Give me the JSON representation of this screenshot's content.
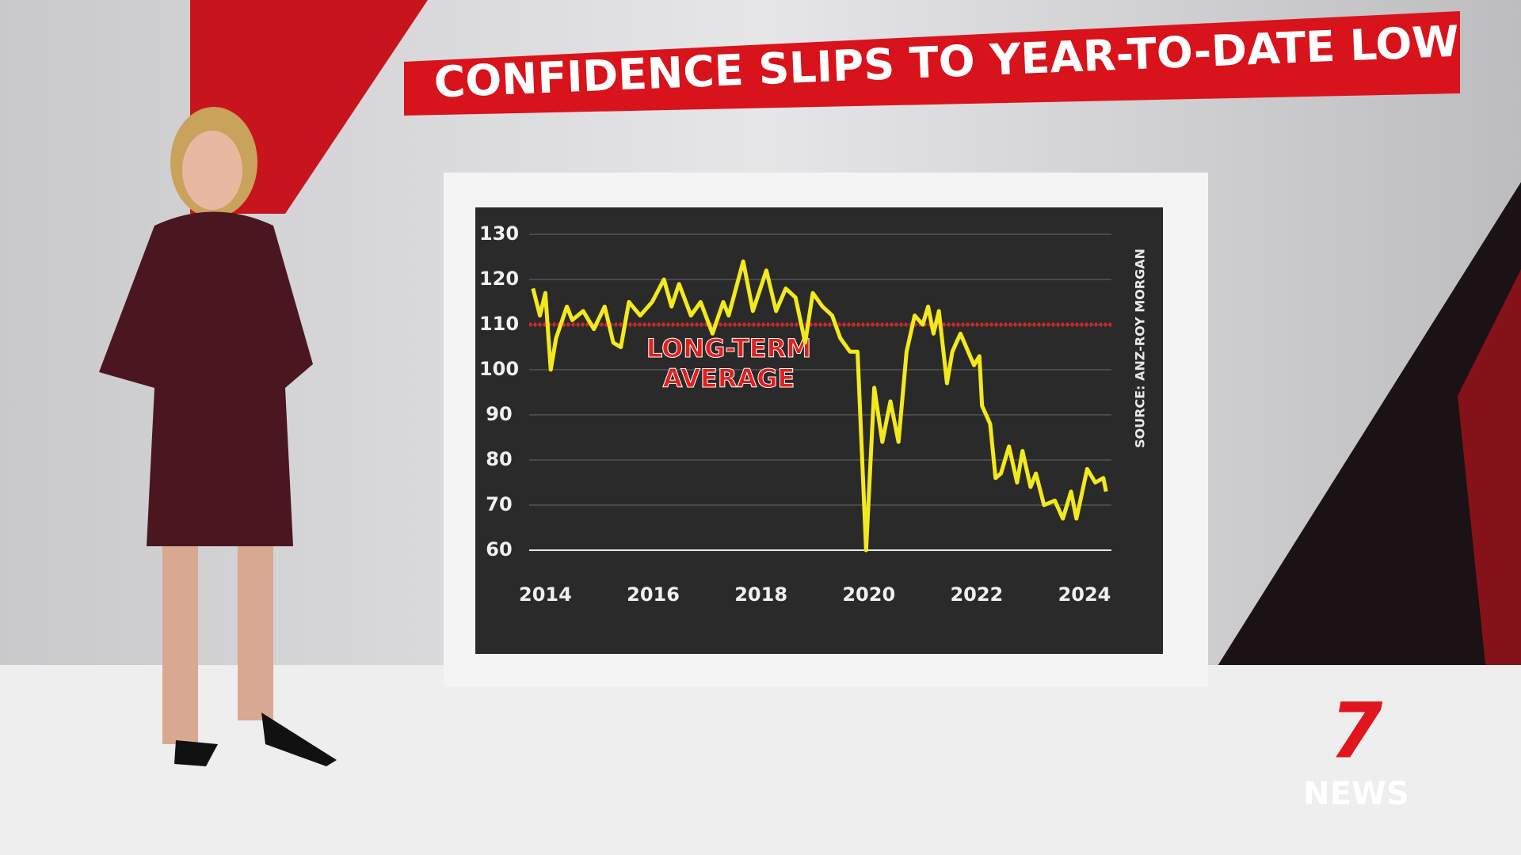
{
  "chart_data": {
    "type": "line",
    "title": "CONFIDENCE SLIPS TO YEAR-TO-DATE LOW",
    "source": "SOURCE: ANZ-ROY MORGAN",
    "average_label": [
      "LONG-TERM",
      "AVERAGE"
    ],
    "average": 110,
    "average_color": "#e0201c",
    "color": "#f2ea1c",
    "x": [
      2013.77,
      2013.9,
      2014.0,
      2014.1,
      2014.2,
      2014.4,
      2014.5,
      2014.7,
      2014.9,
      2015.1,
      2015.26,
      2015.4,
      2015.55,
      2015.76,
      2015.98,
      2016.2,
      2016.34,
      2016.48,
      2016.7,
      2016.88,
      2017.1,
      2017.3,
      2017.4,
      2017.67,
      2017.85,
      2018.1,
      2018.28,
      2018.46,
      2018.64,
      2018.82,
      2018.96,
      2019.14,
      2019.32,
      2019.47,
      2019.65,
      2019.79,
      2019.95,
      2020.1,
      2020.25,
      2020.4,
      2020.55,
      2020.7,
      2020.85,
      2021.0,
      2021.1,
      2021.2,
      2021.3,
      2021.45,
      2021.55,
      2021.7,
      2021.95,
      2022.05,
      2022.1,
      2022.25,
      2022.35,
      2022.45,
      2022.6,
      2022.75,
      2022.85,
      2023.0,
      2023.1,
      2023.25,
      2023.45,
      2023.6,
      2023.75,
      2023.85,
      2024.05,
      2024.2,
      2024.35,
      2024.4
    ],
    "values": [
      118,
      112,
      117,
      100,
      107,
      114,
      111,
      113,
      109,
      114,
      106,
      105,
      115,
      112,
      115,
      120,
      114,
      119,
      112,
      115,
      108,
      115,
      112,
      124,
      113,
      122,
      113,
      118,
      116,
      106,
      117,
      114,
      112,
      107,
      104,
      104,
      60,
      96,
      84,
      93,
      84,
      104,
      112,
      110,
      114,
      108,
      113,
      97,
      104,
      108,
      101,
      103,
      92,
      88,
      76,
      77,
      83,
      75,
      82,
      74,
      77,
      70,
      71,
      67,
      73,
      67,
      78,
      75,
      76,
      73
    ],
    "xlim": [
      2013.7,
      2024.5
    ],
    "xticks": [
      2014,
      2016,
      2018,
      2020,
      2022,
      2024
    ],
    "ylim": [
      60,
      130
    ],
    "yticks": [
      60,
      70,
      80,
      90,
      100,
      110,
      120,
      130
    ],
    "grid": true
  },
  "logo": {
    "mark": "7",
    "text": "NEWS"
  }
}
